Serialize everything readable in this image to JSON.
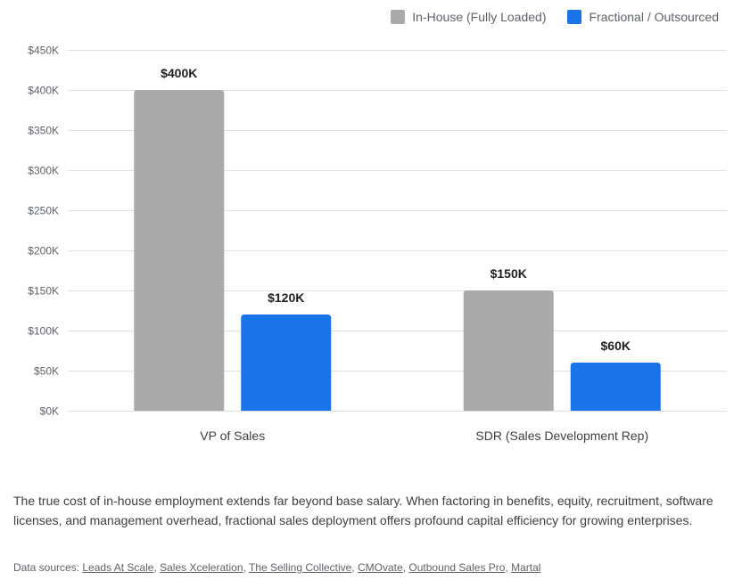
{
  "chart_data": {
    "type": "bar",
    "title": "",
    "xlabel": "",
    "ylabel": "",
    "categories": [
      "VP of Sales",
      "SDR (Sales Development Rep)"
    ],
    "series": [
      {
        "name": "In-House (Fully Loaded)",
        "color": "#aaaaaa",
        "values": [
          400,
          150
        ],
        "labels": [
          "$400K",
          "$150K"
        ]
      },
      {
        "name": "Fractional / Outsourced",
        "color": "#1a73e8",
        "values": [
          120,
          60
        ],
        "labels": [
          "$120K",
          "$60K"
        ]
      }
    ],
    "ylim": [
      0,
      450
    ],
    "yticks": [
      0,
      50,
      100,
      150,
      200,
      250,
      300,
      350,
      400,
      450
    ],
    "ytick_labels": [
      "$0K",
      "$50K",
      "$100K",
      "$150K",
      "$200K",
      "$250K",
      "$300K",
      "$350K",
      "$400K",
      "$450K"
    ],
    "grid": true,
    "legend_position": "top-right",
    "units": "thousands USD"
  },
  "caption": "The true cost of in-house employment extends far beyond base salary. When factoring in benefits, equity, recruitment, software licenses, and management overhead, fractional sales deployment offers profound capital efficiency for growing enterprises.",
  "sources": {
    "prefix": "Data sources: ",
    "links": [
      "Leads At Scale",
      "Sales Xceleration",
      "The Selling Collective",
      "CMOvate",
      "Outbound Sales Pro",
      "Martal"
    ]
  }
}
